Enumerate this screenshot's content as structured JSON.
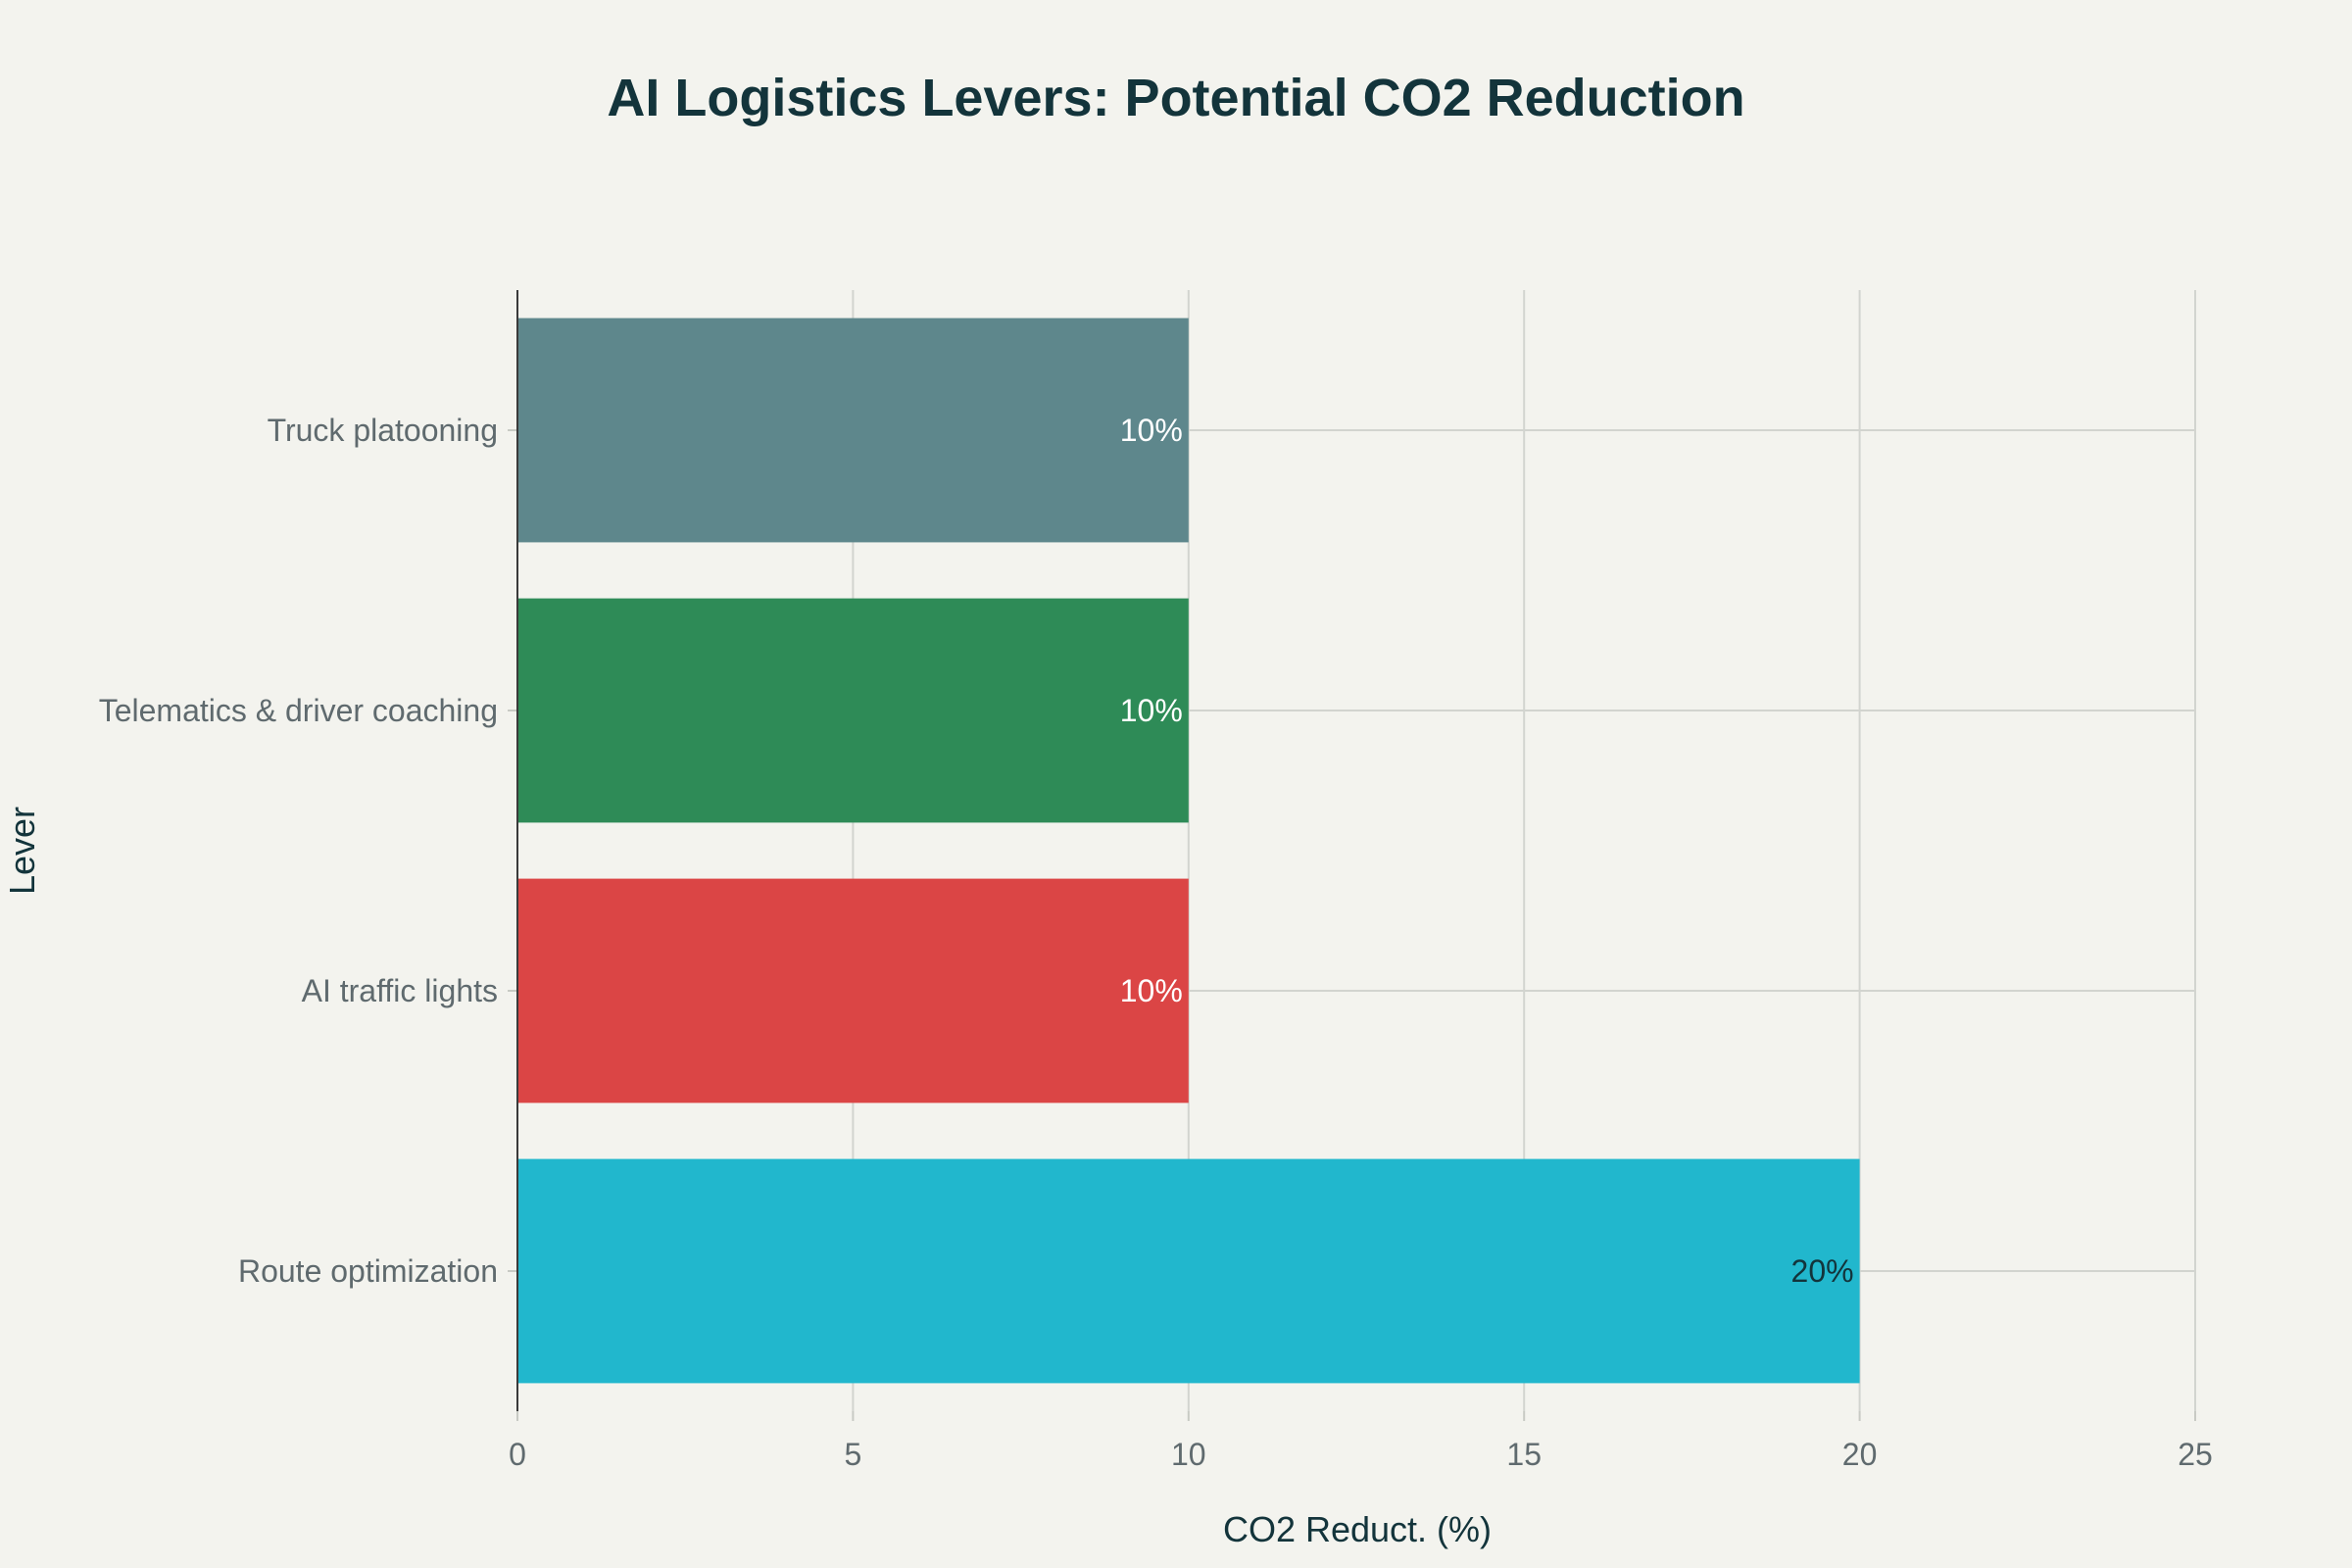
{
  "chart_data": {
    "type": "bar",
    "orientation": "horizontal",
    "title": "AI Logistics Levers: Potential CO2 Reduction",
    "xlabel": "CO2 Reduct. (%)",
    "ylabel": "Lever",
    "xlim": [
      0,
      25
    ],
    "x_ticks": [
      0,
      5,
      10,
      15,
      20,
      25
    ],
    "grid": true,
    "categories": [
      "Truck platooning",
      "Telematics & driver coaching",
      "AI traffic lights",
      "Route optimization"
    ],
    "values": [
      10,
      10,
      10,
      20
    ],
    "data_labels": [
      "10%",
      "10%",
      "10%",
      "20%"
    ],
    "colors": [
      "#5e878c",
      "#2e8b57",
      "#db4545",
      "#21b7cd"
    ],
    "data_label_colors": [
      "#ffffff",
      "#ffffff",
      "#ffffff",
      "#13343b"
    ]
  }
}
